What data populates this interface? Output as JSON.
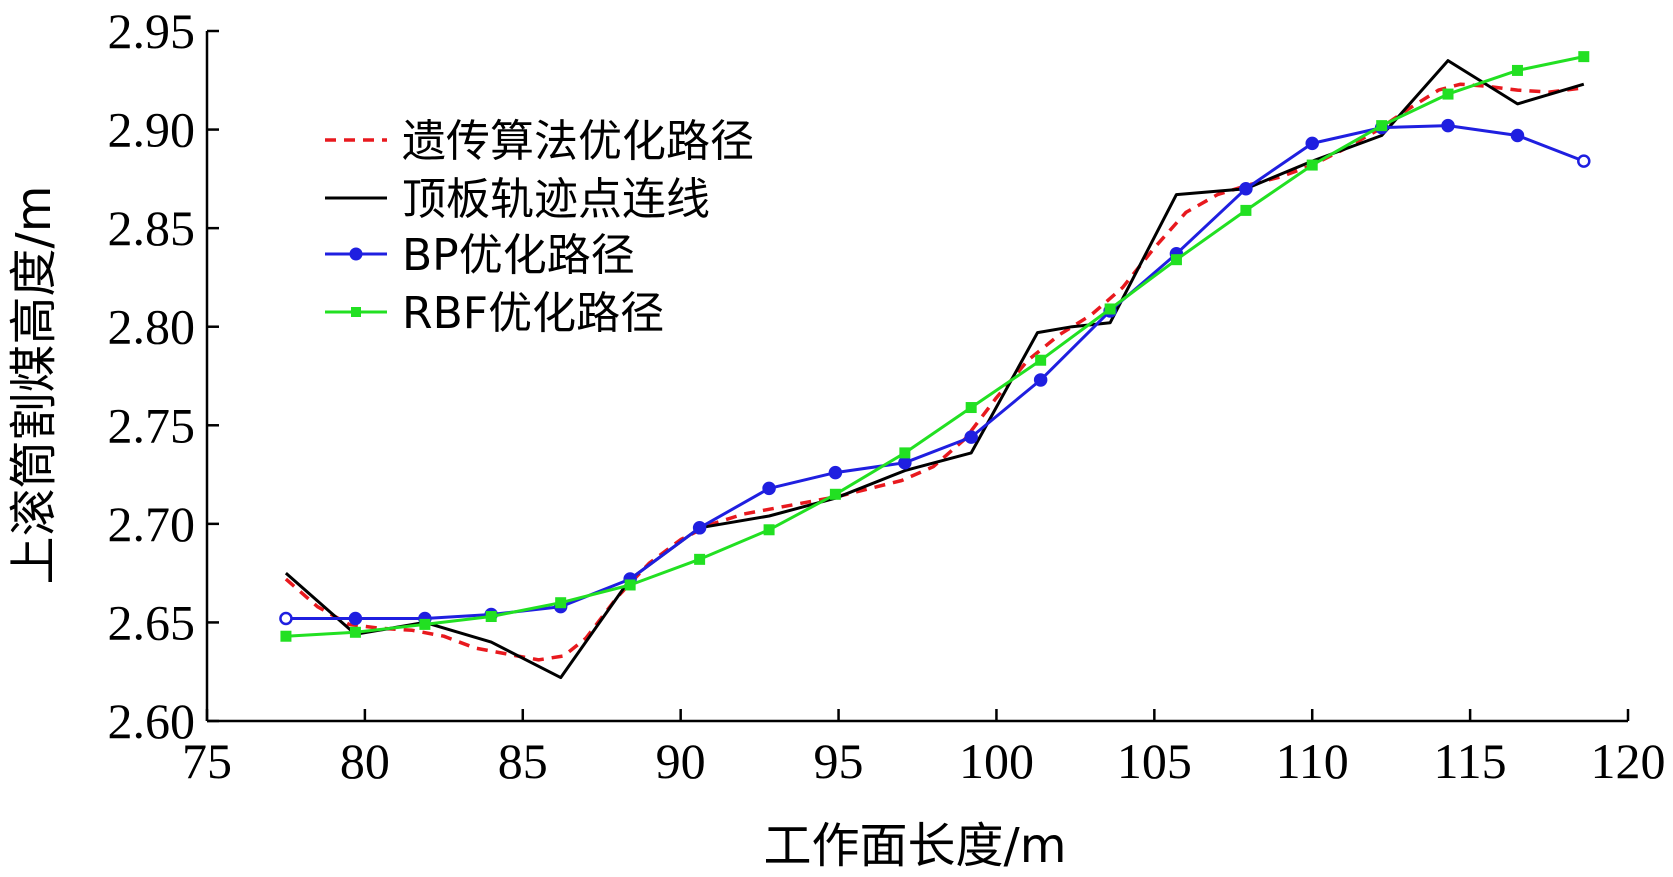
{
  "chart_data": {
    "type": "line",
    "title": "",
    "xlabel": "工作面长度/m",
    "ylabel": "上滚筒割煤高度/m",
    "xlim": [
      75,
      120
    ],
    "ylim": [
      2.6,
      2.95
    ],
    "xticks": [
      "75",
      "80",
      "85",
      "90",
      "95",
      "100",
      "105",
      "110",
      "115",
      "120"
    ],
    "yticks": [
      "2.60",
      "2.65",
      "2.70",
      "2.75",
      "2.80",
      "2.85",
      "2.90",
      "2.95"
    ],
    "grid": false,
    "legend_position": "top-left",
    "series": [
      {
        "name": "遗传算法优化路径",
        "color": "#e8191e",
        "style": "dashed",
        "marker": "none",
        "x": [
          77.5,
          78.5,
          79.5,
          80.5,
          81.5,
          82.5,
          83.5,
          84.5,
          85.5,
          86.3,
          87.0,
          88.0,
          89.0,
          90.0,
          91.0,
          92.0,
          93.0,
          94.0,
          95.0,
          96.0,
          97.0,
          98.0,
          99.0,
          100.0,
          101.0,
          102.0,
          103.0,
          104.0,
          105.0,
          106.0,
          107.0,
          108.0,
          109.0,
          110.0,
          111.0,
          112.0,
          113.0,
          114.0,
          114.7,
          115.5,
          116.5,
          117.5,
          118.5
        ],
        "y": [
          2.672,
          2.658,
          2.649,
          2.647,
          2.646,
          2.643,
          2.637,
          2.634,
          2.631,
          2.633,
          2.642,
          2.663,
          2.68,
          2.692,
          2.7,
          2.705,
          2.708,
          2.711,
          2.714,
          2.718,
          2.722,
          2.729,
          2.743,
          2.764,
          2.783,
          2.796,
          2.806,
          2.82,
          2.84,
          2.858,
          2.867,
          2.872,
          2.876,
          2.882,
          2.89,
          2.899,
          2.91,
          2.92,
          2.923,
          2.922,
          2.92,
          2.919,
          2.921
        ]
      },
      {
        "name": "顶板轨迹点连线",
        "color": "#000000",
        "style": "solid",
        "marker": "none",
        "x": [
          77.5,
          79.7,
          81.9,
          84.0,
          86.2,
          88.4,
          90.6,
          92.8,
          94.9,
          97.1,
          99.2,
          101.3,
          102.4,
          103.6,
          105.7,
          107.9,
          110.0,
          112.2,
          114.3,
          116.5,
          118.6
        ],
        "y": [
          2.675,
          2.644,
          2.65,
          2.64,
          2.622,
          2.672,
          2.698,
          2.704,
          2.713,
          2.727,
          2.736,
          2.797,
          2.8,
          2.802,
          2.867,
          2.87,
          2.884,
          2.897,
          2.935,
          2.913,
          2.923
        ]
      },
      {
        "name": "BP优化路径",
        "color": "#1f1fe0",
        "style": "solid",
        "marker": "circle",
        "x": [
          77.5,
          79.7,
          81.9,
          84.0,
          86.2,
          88.4,
          90.6,
          92.8,
          94.9,
          97.1,
          99.2,
          101.4,
          103.6,
          105.7,
          107.9,
          110.0,
          112.2,
          114.3,
          116.5,
          118.6
        ],
        "y": [
          2.652,
          2.652,
          2.652,
          2.654,
          2.658,
          2.672,
          2.698,
          2.718,
          2.726,
          2.731,
          2.744,
          2.773,
          2.808,
          2.837,
          2.87,
          2.893,
          2.901,
          2.902,
          2.897,
          2.884
        ]
      },
      {
        "name": "RBF优化路径",
        "color": "#22e022",
        "style": "solid",
        "marker": "square",
        "x": [
          77.5,
          79.7,
          81.9,
          84.0,
          86.2,
          88.4,
          90.6,
          92.8,
          94.9,
          97.1,
          99.2,
          101.4,
          103.6,
          105.7,
          107.9,
          110.0,
          112.2,
          114.3,
          116.5,
          118.6
        ],
        "y": [
          2.643,
          2.645,
          2.649,
          2.653,
          2.66,
          2.669,
          2.682,
          2.697,
          2.715,
          2.736,
          2.759,
          2.783,
          2.809,
          2.834,
          2.859,
          2.882,
          2.902,
          2.918,
          2.93,
          2.937
        ]
      }
    ]
  }
}
